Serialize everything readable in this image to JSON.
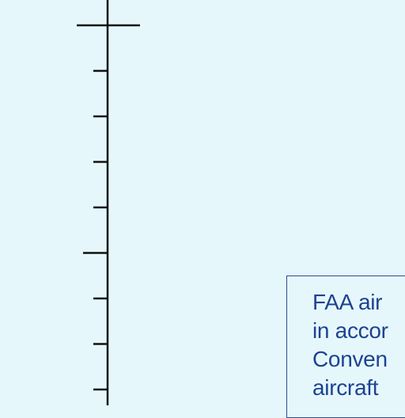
{
  "scale_bar": {
    "major_every": 5,
    "tick_count": 9
  },
  "note": {
    "lines": [
      "FAA air",
      "in accor",
      "Conven",
      "aircraft"
    ]
  },
  "colors": {
    "background": "#e6f7fb",
    "scale_bar": "#111111",
    "note_text": "#1c4392",
    "note_border": "#2c4f93"
  }
}
